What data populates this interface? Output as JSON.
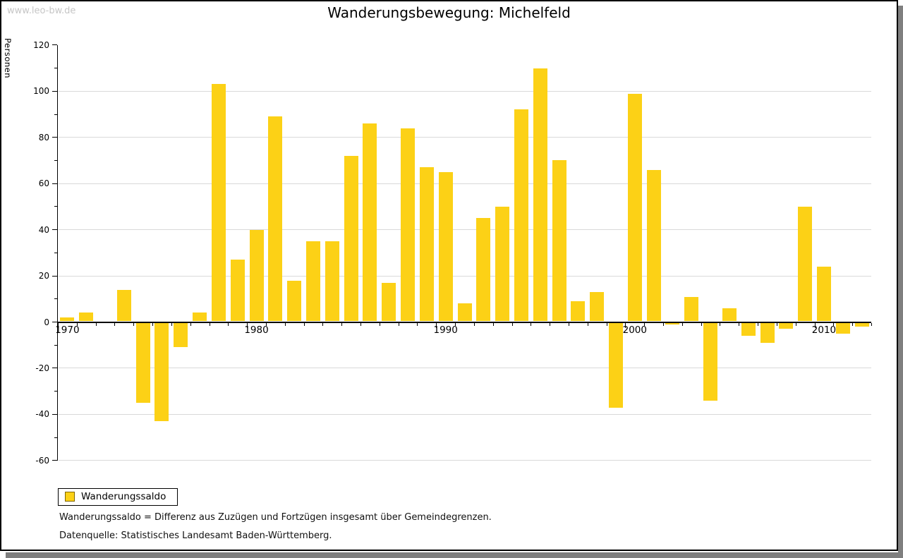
{
  "watermark": "www.leo-bw.de",
  "title": "Wanderungsbewegung: Michelfeld",
  "y_axis_title": "Personen",
  "legend": {
    "label": "Wanderungssaldo"
  },
  "notes": {
    "definition": "Wanderungssaldo = Differenz aus Zuzügen und Fortzügen insgesamt über Gemeindegrenzen.",
    "source": "Datenquelle: Statistisches Landesamt Baden-Württemberg."
  },
  "colors": {
    "bar": "#FCD116",
    "swatch_border": "#806600",
    "gridline": "#D9D9D9",
    "axis": "#000000",
    "watermark": "#C6C6C6",
    "frame_shadow": "#7F7F7F"
  },
  "chart_data": {
    "type": "bar",
    "title": "Wanderungsbewegung: Michelfeld",
    "xlabel": "",
    "ylabel": "Personen",
    "ylim": [
      -60,
      120
    ],
    "ytick_step": 20,
    "yminor_step": 10,
    "grid": true,
    "legend_entries": [
      "Wanderungssaldo"
    ],
    "legend_position": "bottom-left",
    "x_decade_labels": [
      "1970",
      "1980",
      "1990",
      "2000",
      "2010"
    ],
    "years": [
      1970,
      1971,
      1972,
      1973,
      1974,
      1975,
      1976,
      1977,
      1978,
      1979,
      1980,
      1981,
      1982,
      1983,
      1984,
      1985,
      1986,
      1987,
      1988,
      1989,
      1990,
      1991,
      1992,
      1993,
      1994,
      1995,
      1996,
      1997,
      1998,
      1999,
      2000,
      2001,
      2002,
      2003,
      2004,
      2005,
      2006,
      2007,
      2008,
      2009,
      2010,
      2011,
      2012
    ],
    "values": [
      2,
      4,
      0,
      14,
      -35,
      -43,
      -11,
      4,
      103,
      27,
      40,
      89,
      18,
      35,
      35,
      72,
      86,
      17,
      84,
      67,
      65,
      8,
      45,
      50,
      92,
      110,
      70,
      9,
      13,
      -37,
      99,
      66,
      -1,
      11,
      -34,
      6,
      -6,
      -9,
      -3,
      50,
      24,
      -5,
      -2
    ]
  }
}
